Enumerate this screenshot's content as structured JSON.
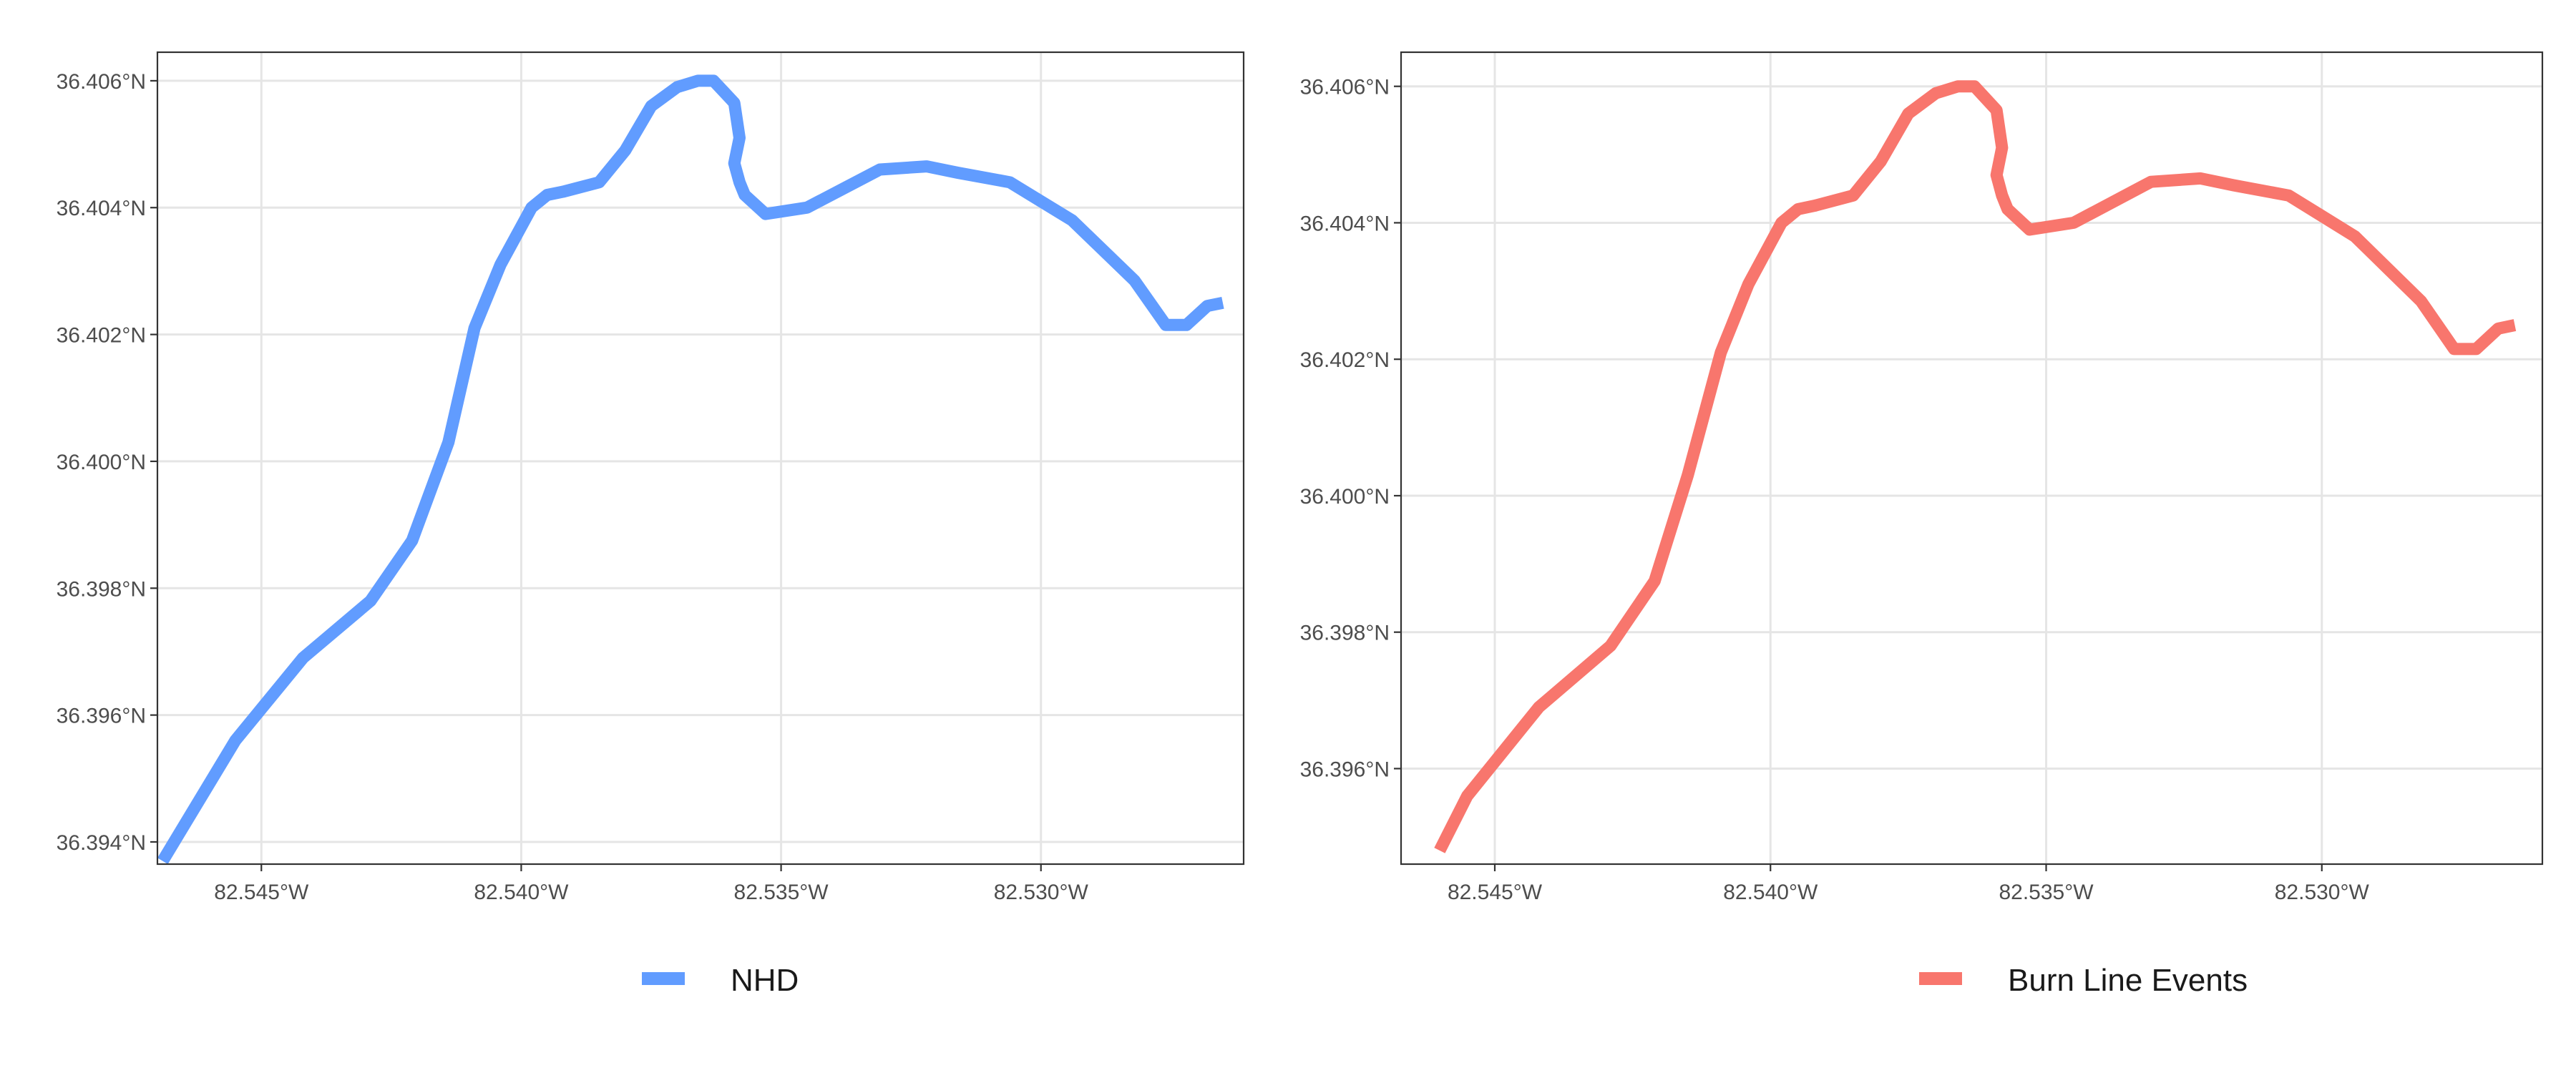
{
  "chart_data": [
    {
      "type": "line",
      "panel": "left",
      "xlim": [
        -82.547,
        -82.5261
      ],
      "ylim": [
        36.39365,
        36.40645
      ],
      "x_ticks": [
        -82.545,
        -82.54,
        -82.535,
        -82.53
      ],
      "x_tick_labels": [
        "82.545°W",
        "82.540°W",
        "82.535°W",
        "82.530°W"
      ],
      "y_ticks": [
        36.394,
        36.396,
        36.398,
        36.4,
        36.402,
        36.404,
        36.406
      ],
      "y_tick_labels": [
        "36.394°N",
        "36.396°N",
        "36.398°N",
        "36.400°N",
        "36.402°N",
        "36.404°N",
        "36.406°N"
      ],
      "grid": true,
      "legend_position": "bottom",
      "series": [
        {
          "name": "NHD",
          "color": "#619CFF",
          "x": [
            -82.5469,
            -82.5455,
            -82.5442,
            -82.5429,
            -82.5421,
            -82.5414,
            -82.5409,
            -82.5404,
            -82.5398,
            -82.5395,
            -82.5392,
            -82.5385,
            -82.538,
            -82.5375,
            -82.537,
            -82.5366,
            -82.5363,
            -82.5359,
            -82.5358,
            -82.5359,
            -82.5358,
            -82.5357,
            -82.5353,
            -82.5345,
            -82.5331,
            -82.5322,
            -82.5316,
            -82.5306,
            -82.53,
            -82.5294,
            -82.5282,
            -82.5276,
            -82.5272,
            -82.5268,
            -82.5265
          ],
          "y": [
            36.3937,
            36.3956,
            36.3969,
            36.3978,
            36.39875,
            36.4003,
            36.4021,
            36.4031,
            36.404,
            36.4042,
            36.40425,
            36.4044,
            36.4049,
            36.4056,
            36.4059,
            36.406,
            36.406,
            36.40565,
            36.4051,
            36.4047,
            36.4044,
            36.4042,
            36.4039,
            36.404,
            36.4046,
            36.40465,
            36.40455,
            36.4044,
            36.4041,
            36.4038,
            36.40285,
            36.40215,
            36.40215,
            36.40245,
            36.4025
          ]
        }
      ]
    },
    {
      "type": "line",
      "panel": "right",
      "xlim": [
        -82.5467,
        -82.526
      ],
      "ylim": [
        36.3946,
        36.4065
      ],
      "x_ticks": [
        -82.545,
        -82.54,
        -82.535,
        -82.53
      ],
      "x_tick_labels": [
        "82.545°W",
        "82.540°W",
        "82.535°W",
        "82.530°W"
      ],
      "y_ticks": [
        36.396,
        36.398,
        36.4,
        36.402,
        36.404,
        36.406
      ],
      "y_tick_labels": [
        "36.396°N",
        "36.398°N",
        "36.400°N",
        "36.402°N",
        "36.404°N",
        "36.406°N"
      ],
      "grid": true,
      "legend_position": "bottom",
      "series": [
        {
          "name": "Burn Line Events",
          "color": "#F8766D",
          "x": [
            -82.546,
            -82.5455,
            -82.5442,
            -82.5429,
            -82.5421,
            -82.5415,
            -82.5409,
            -82.5404,
            -82.5398,
            -82.5395,
            -82.5392,
            -82.5385,
            -82.538,
            -82.5375,
            -82.537,
            -82.5366,
            -82.5363,
            -82.5359,
            -82.5358,
            -82.5359,
            -82.5358,
            -82.5357,
            -82.5353,
            -82.5345,
            -82.5331,
            -82.5322,
            -82.5316,
            -82.5306,
            -82.53,
            -82.5294,
            -82.5282,
            -82.5276,
            -82.5272,
            -82.5268,
            -82.5265
          ],
          "y": [
            36.3948,
            36.3956,
            36.3969,
            36.3978,
            36.39875,
            36.4003,
            36.4021,
            36.4031,
            36.404,
            36.4042,
            36.40425,
            36.4044,
            36.4049,
            36.4056,
            36.4059,
            36.406,
            36.406,
            36.40565,
            36.4051,
            36.4047,
            36.4044,
            36.4042,
            36.4039,
            36.404,
            36.4046,
            36.40465,
            36.40455,
            36.4044,
            36.4041,
            36.4038,
            36.40285,
            36.40215,
            36.40215,
            36.40245,
            36.4025
          ]
        }
      ]
    }
  ]
}
